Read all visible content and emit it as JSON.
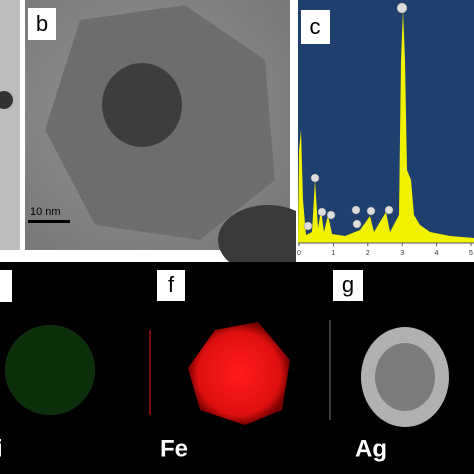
{
  "panels": {
    "b": {
      "label": "b",
      "scale_bar": "10 nm"
    },
    "c": {
      "label": "c",
      "xlim": [
        0,
        5
      ],
      "xticks": [
        0,
        1,
        2,
        3,
        4,
        5
      ]
    },
    "e": {
      "element": "i"
    },
    "f": {
      "label": "f",
      "element": "Fe"
    },
    "g": {
      "label": "g",
      "element": "Ag"
    }
  }
}
